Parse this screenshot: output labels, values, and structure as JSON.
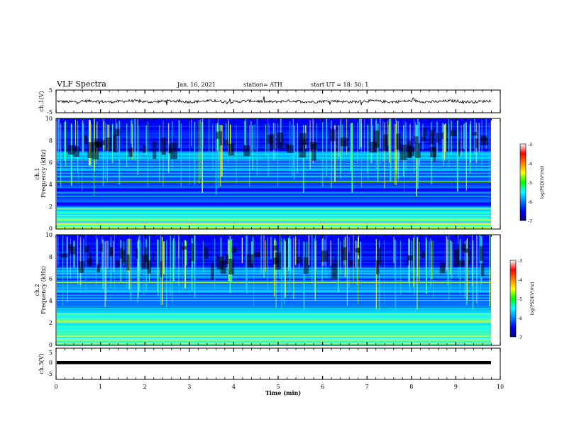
{
  "header": {
    "title": "VLF Spectra",
    "date": "Jan. 16, 2021",
    "station": "station= ATH",
    "start": "start  UT =   18: 50: 1"
  },
  "chart_data": [
    {
      "type": "line",
      "panel": "ch1-waveform",
      "ylabel": "ch.1(V)",
      "ylim": [
        -5,
        5
      ],
      "y_ticks": [
        "5",
        "-5"
      ],
      "xlim": [
        0,
        10
      ],
      "waveform": "noisy voltage trace centered near 0 V, amplitude roughly ±1 V"
    },
    {
      "type": "heatmap",
      "panel": "ch1-spectrogram",
      "ylabel": "Frequency (kHz)",
      "channel_label": "ch.1",
      "xlim": [
        0,
        10
      ],
      "ylim": [
        0,
        10
      ],
      "y_ticks": [
        "0",
        "2",
        "4",
        "6",
        "8",
        "10"
      ],
      "colorbar": {
        "label": "log(PSD)(V²/Hz)",
        "range": [
          -7,
          -3
        ],
        "ticks": [
          "-3",
          "-4",
          "-5",
          "-6",
          "-7"
        ]
      }
    },
    {
      "type": "heatmap",
      "panel": "ch2-spectrogram",
      "ylabel": "Frequency (kHz)",
      "channel_label": "ch.2",
      "xlim": [
        0,
        10
      ],
      "ylim": [
        0,
        10
      ],
      "y_ticks": [
        "0",
        "2",
        "4",
        "6",
        "8",
        "10"
      ],
      "colorbar": {
        "label": "log(PSD)(V²/Hz)",
        "range": [
          -7,
          -3
        ],
        "ticks": [
          "-3",
          "-4",
          "-5",
          "-6",
          "-7"
        ]
      }
    },
    {
      "type": "line",
      "panel": "ch3-waveform",
      "ylabel": "ch.3(V)",
      "ylim": [
        -5,
        5
      ],
      "y_ticks": [
        "5",
        "0",
        "-5"
      ],
      "xlim": [
        0,
        10
      ],
      "waveform": "nearly flat thick trace at about -1 V"
    }
  ],
  "x_axis": {
    "label": "Time  (min)",
    "ticks": [
      "0",
      "1",
      "2",
      "3",
      "4",
      "5",
      "6",
      "7",
      "8",
      "9",
      "10"
    ]
  }
}
